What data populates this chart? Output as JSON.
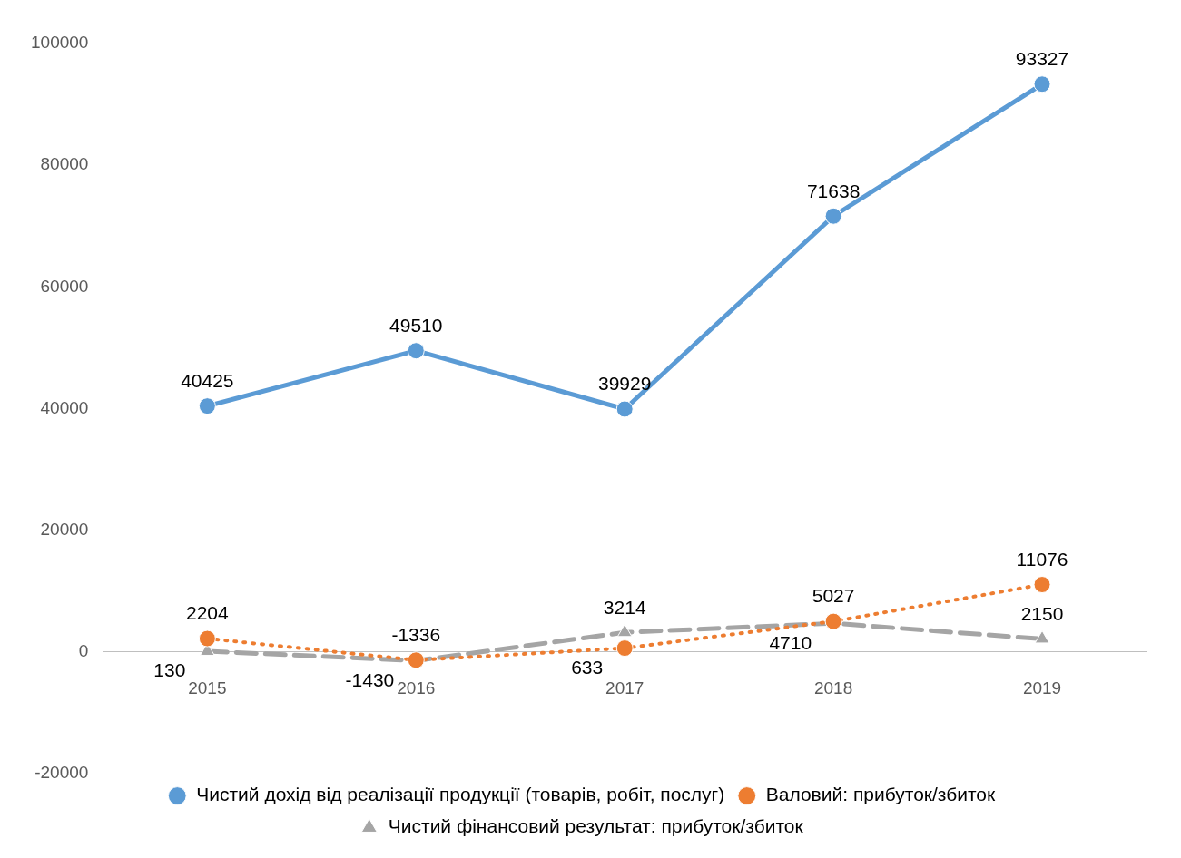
{
  "chart_data": {
    "type": "line",
    "categories": [
      "2015",
      "2016",
      "2017",
      "2018",
      "2019"
    ],
    "series": [
      {
        "name": "Чистий дохід від реалізації продукції (товарів, робіт, послуг)",
        "color": "#5b9bd5",
        "values": [
          40425,
          49510,
          39929,
          71638,
          93327
        ],
        "marker": "circle",
        "line_style": "solid"
      },
      {
        "name": "Валовий: прибуток/збиток",
        "color": "#ed7d31",
        "values": [
          2204,
          -1336,
          633,
          5027,
          11076
        ],
        "marker": "circle",
        "line_style": "dotted"
      },
      {
        "name": "Чистий фінансовий результат: прибуток/збиток",
        "color": "#a5a5a5",
        "values": [
          130,
          -1430,
          3214,
          4710,
          2150
        ],
        "marker": "triangle",
        "line_style": "dashed"
      }
    ],
    "ylim": [
      -20000,
      100000
    ],
    "yticks": [
      -20000,
      0,
      20000,
      40000,
      60000,
      80000,
      100000
    ],
    "grid": false,
    "legend": "bottom",
    "data_labels": true
  }
}
